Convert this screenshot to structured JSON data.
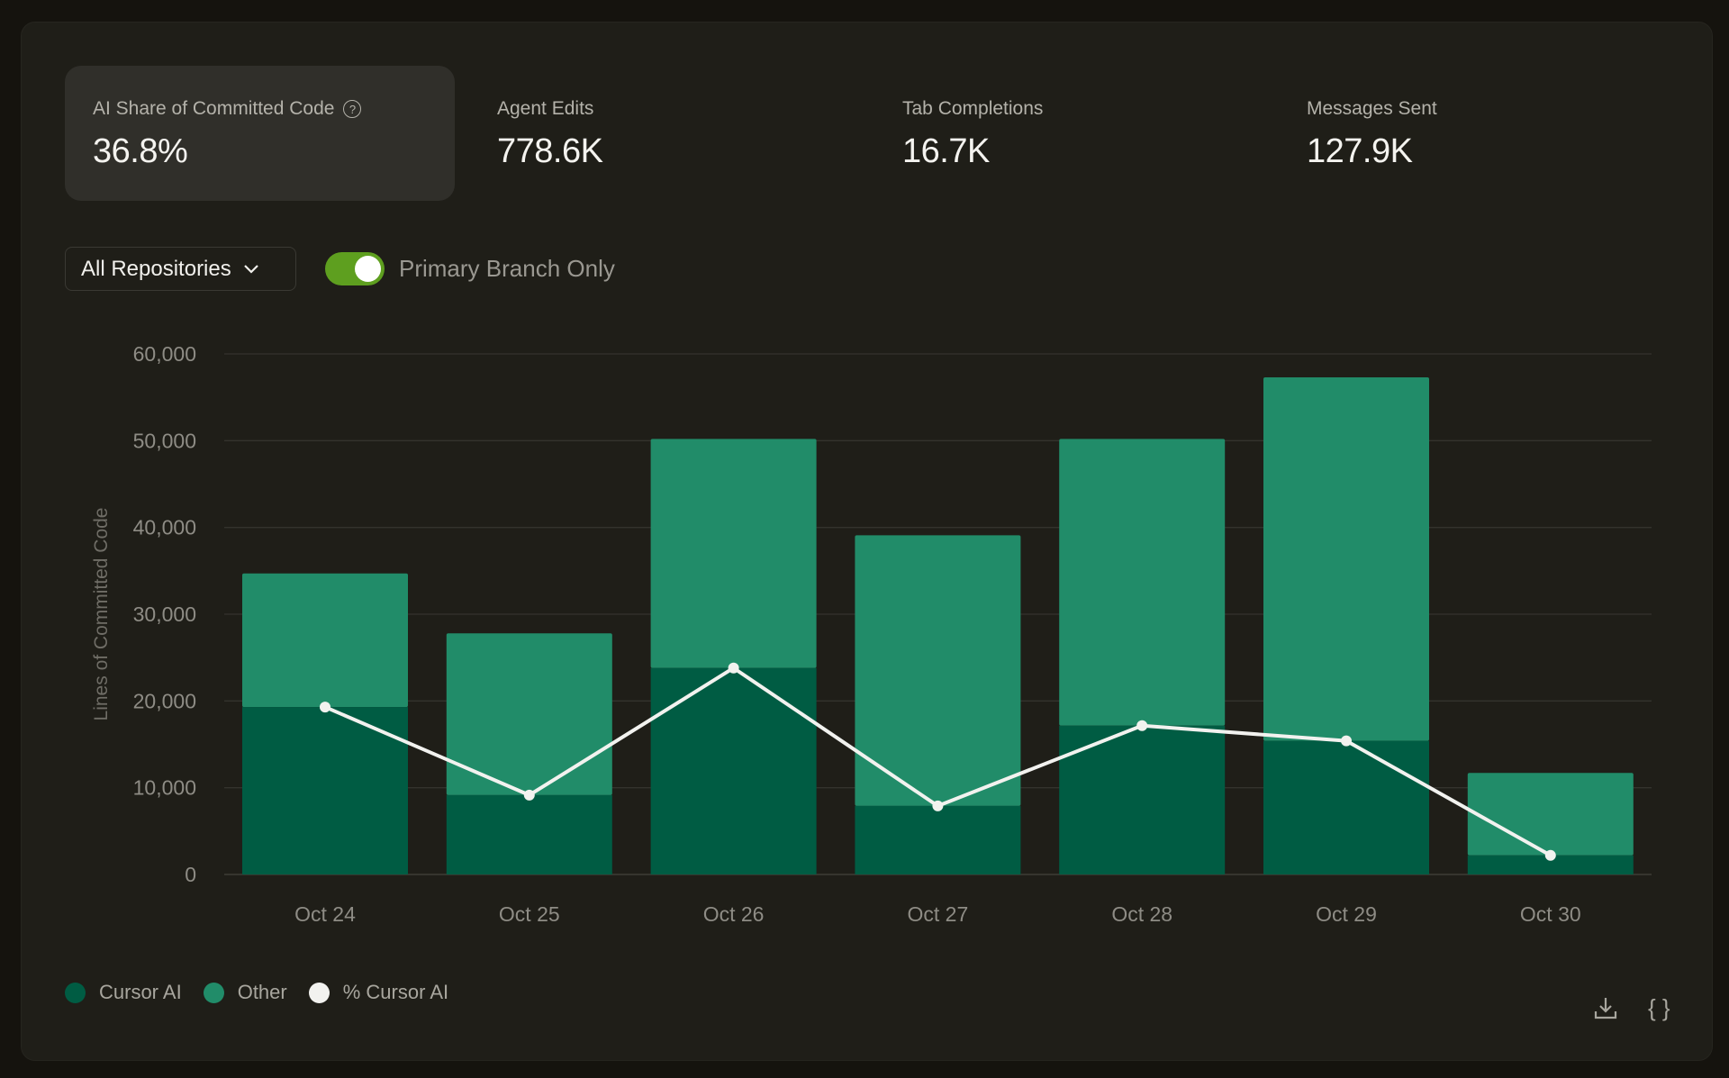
{
  "stats": [
    {
      "label": "AI Share of Committed Code",
      "value": "36.8%",
      "help_icon": "question-circle-icon"
    },
    {
      "label": "Agent Edits",
      "value": "778.6K"
    },
    {
      "label": "Tab Completions",
      "value": "16.7K"
    },
    {
      "label": "Messages Sent",
      "value": "127.9K"
    }
  ],
  "filters": {
    "repository": "All Repositories",
    "toggle_label": "Primary Branch Only",
    "toggle_on": true
  },
  "colors": {
    "cursor_ai": "#005c43",
    "other": "#218c69",
    "line": "#f2f2ef",
    "toggle": "#5e9f1f"
  },
  "chart_data": {
    "type": "bar",
    "stacked": true,
    "categories": [
      "Oct 24",
      "Oct 25",
      "Oct 26",
      "Oct 27",
      "Oct 28",
      "Oct 29",
      "Oct 30"
    ],
    "series": [
      {
        "name": "Cursor AI",
        "values": [
          19300,
          9150,
          23800,
          7900,
          17150,
          15400,
          2200
        ]
      },
      {
        "name": "Other",
        "values": [
          15400,
          18650,
          26400,
          31200,
          33050,
          41900,
          9500
        ]
      },
      {
        "name": "% Cursor AI",
        "type": "line",
        "values": [
          19300,
          9150,
          23800,
          7900,
          17150,
          15400,
          2200
        ]
      }
    ],
    "ylabel": "Lines of Committed Code",
    "ylim": [
      0,
      60000
    ],
    "yticks": [
      "0",
      "10,000",
      "20,000",
      "30,000",
      "40,000",
      "50,000",
      "60,000"
    ],
    "grid": true,
    "legend": "bottom-left"
  },
  "actions": {
    "download_icon": "download-icon",
    "json_icon": "braces-icon",
    "json_glyph": "{ }"
  }
}
